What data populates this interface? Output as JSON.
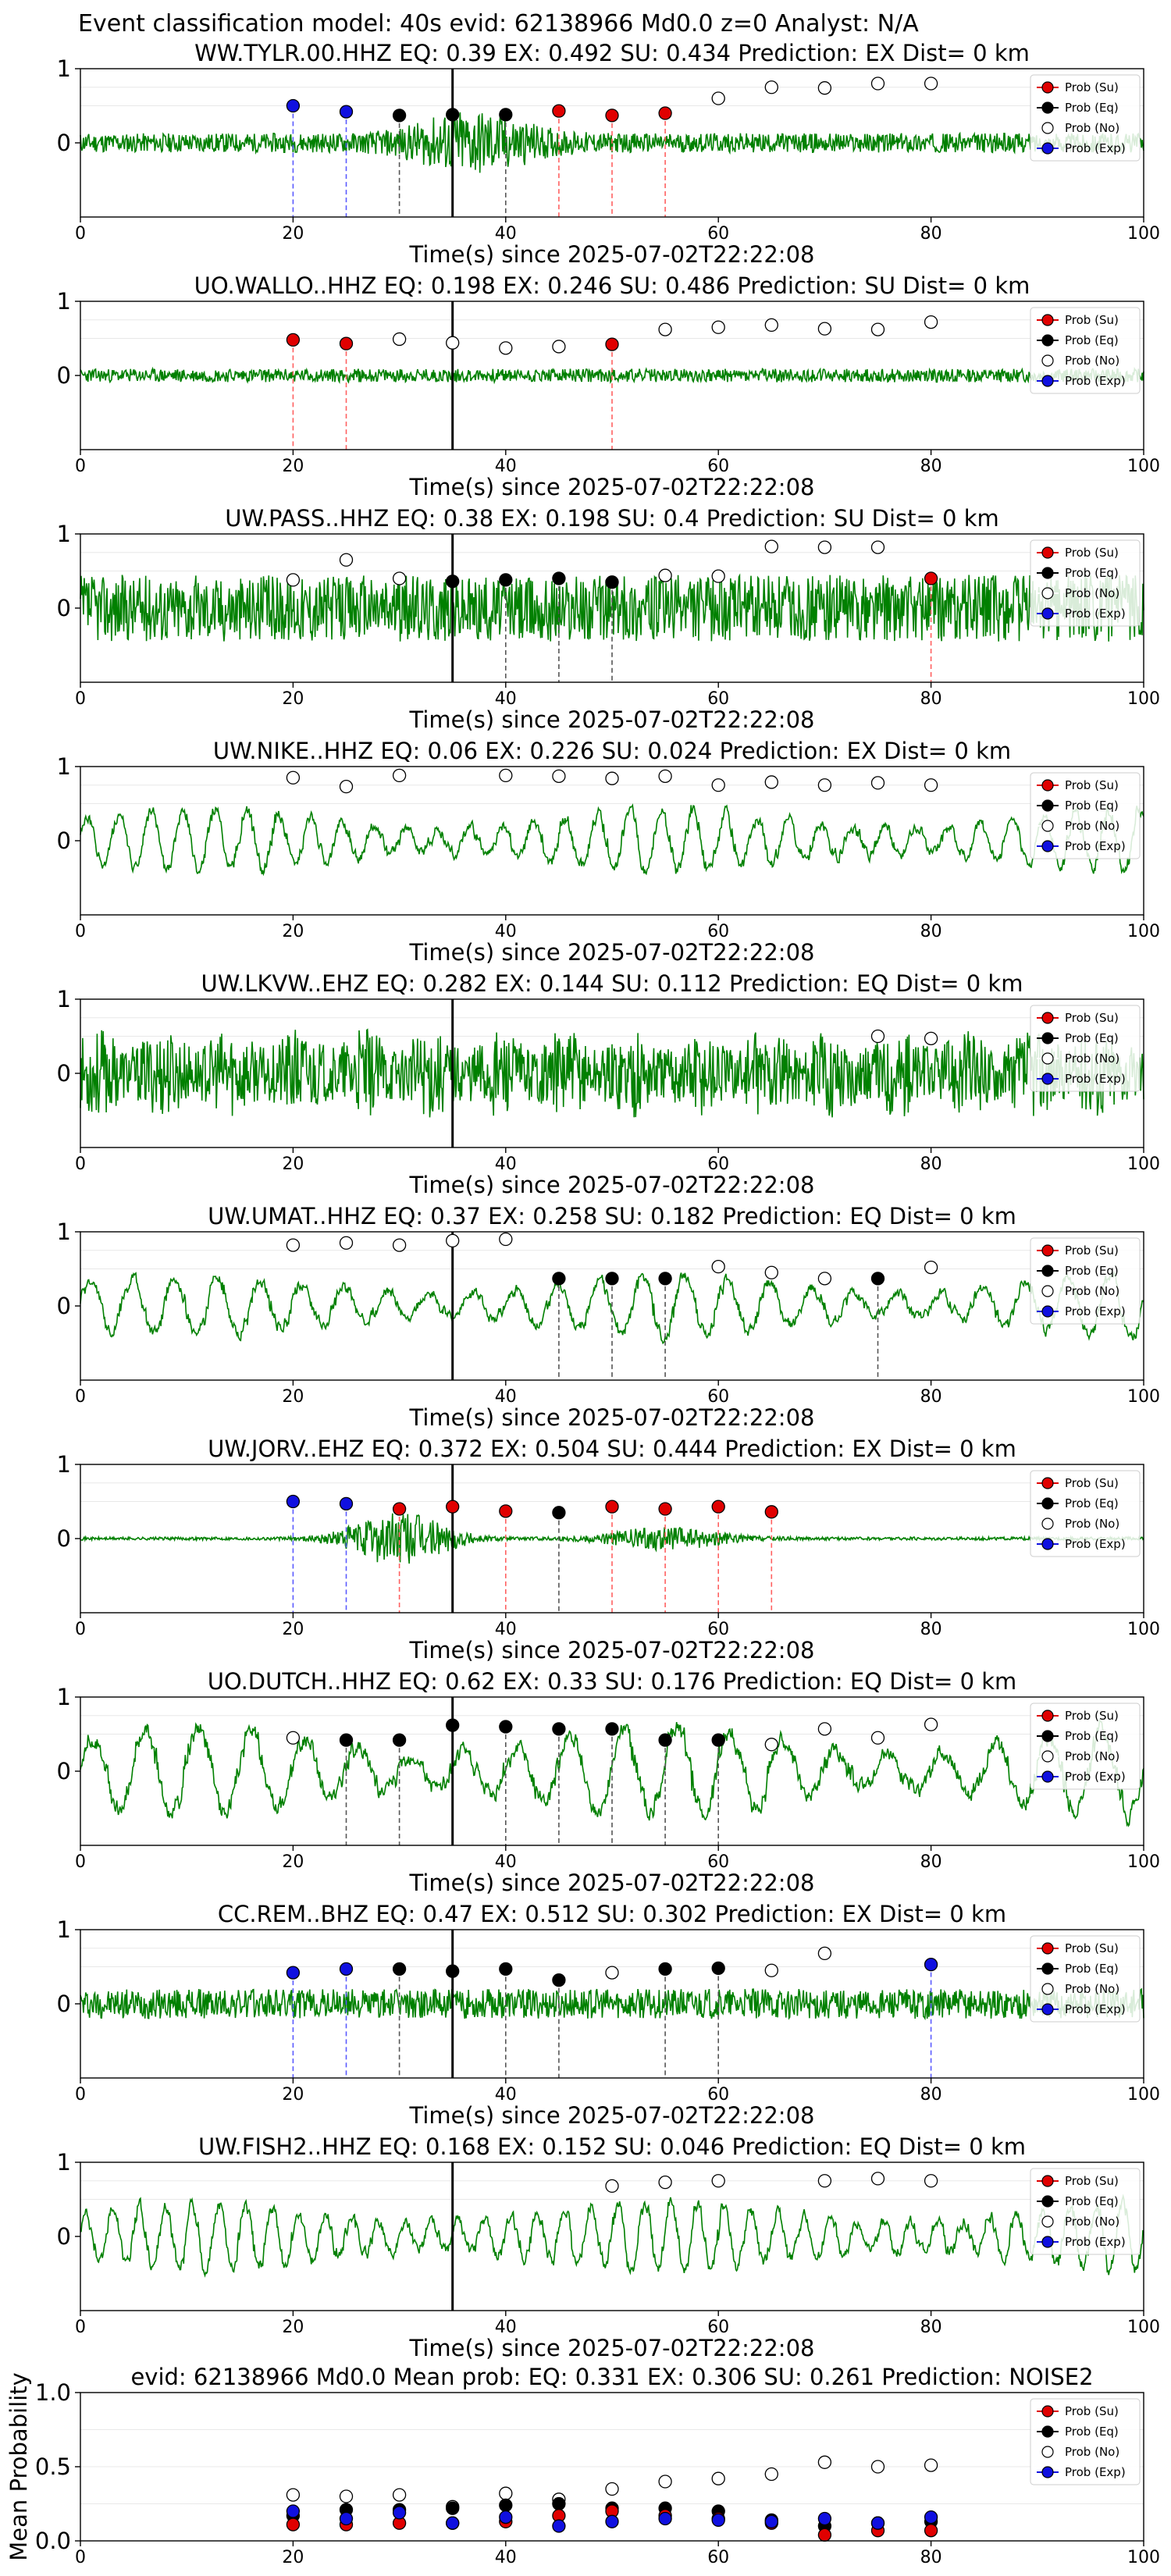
{
  "suptitle": "Event classification model: 40s evid: 62138966 Md0.0 z=0 Analyst: N/A",
  "xlabel": "Time(s) since 2025-07-02T22:22:08",
  "colors": {
    "su": "#e00000",
    "eq": "#000000",
    "no": "#ffffff",
    "exp": "#1010e0",
    "wave": "#008000"
  },
  "legend_labels": [
    "Prob (Su)",
    "Prob (Eq)",
    "Prob (No)",
    "Prob (Exp)"
  ],
  "chart_data": [
    {
      "type": "scatter",
      "station": "WW.TYLR.00.HHZ",
      "title": "WW.TYLR.00.HHZ   EQ: 0.39  EX: 0.492  SU: 0.434   Prediction: EX    Dist= 0 km",
      "xlim": [
        0,
        100
      ],
      "ylim": [
        -1,
        1
      ],
      "yticks": [
        "1",
        "0"
      ],
      "xticks": [
        "0",
        "20",
        "40",
        "60",
        "80",
        "100"
      ],
      "event_line": 35,
      "wave": {
        "amp": 0.13,
        "style": "burst",
        "center": 37,
        "width": 6,
        "boost": 2.5,
        "seed": 11
      },
      "points": [
        {
          "x": 20,
          "y": 0.5,
          "c": "exp"
        },
        {
          "x": 25,
          "y": 0.42,
          "c": "exp"
        },
        {
          "x": 30,
          "y": 0.37,
          "c": "eq"
        },
        {
          "x": 35,
          "y": 0.38,
          "c": "eq"
        },
        {
          "x": 40,
          "y": 0.38,
          "c": "eq"
        },
        {
          "x": 45,
          "y": 0.43,
          "c": "su"
        },
        {
          "x": 50,
          "y": 0.37,
          "c": "su"
        },
        {
          "x": 55,
          "y": 0.4,
          "c": "su"
        },
        {
          "x": 60,
          "y": 0.6,
          "c": "no"
        },
        {
          "x": 65,
          "y": 0.75,
          "c": "no"
        },
        {
          "x": 70,
          "y": 0.74,
          "c": "no"
        },
        {
          "x": 75,
          "y": 0.8,
          "c": "no"
        },
        {
          "x": 80,
          "y": 0.8,
          "c": "no"
        }
      ]
    },
    {
      "type": "scatter",
      "station": "UO.WALLO..HHZ",
      "title": "UO.WALLO..HHZ   EQ: 0.198  EX: 0.246  SU: 0.486   Prediction: SU    Dist= 0 km",
      "xlim": [
        0,
        100
      ],
      "ylim": [
        -1,
        1
      ],
      "yticks": [
        "1",
        "0"
      ],
      "xticks": [
        "0",
        "20",
        "40",
        "60",
        "80",
        "100"
      ],
      "event_line": 35,
      "wave": {
        "amp": 0.09,
        "style": "noise",
        "seed": 23
      },
      "points": [
        {
          "x": 20,
          "y": 0.48,
          "c": "su"
        },
        {
          "x": 25,
          "y": 0.43,
          "c": "su"
        },
        {
          "x": 30,
          "y": 0.49,
          "c": "no"
        },
        {
          "x": 35,
          "y": 0.44,
          "c": "no"
        },
        {
          "x": 40,
          "y": 0.37,
          "c": "no"
        },
        {
          "x": 45,
          "y": 0.39,
          "c": "no"
        },
        {
          "x": 50,
          "y": 0.42,
          "c": "su"
        },
        {
          "x": 55,
          "y": 0.62,
          "c": "no"
        },
        {
          "x": 60,
          "y": 0.65,
          "c": "no"
        },
        {
          "x": 65,
          "y": 0.68,
          "c": "no"
        },
        {
          "x": 70,
          "y": 0.63,
          "c": "no"
        },
        {
          "x": 75,
          "y": 0.62,
          "c": "no"
        },
        {
          "x": 80,
          "y": 0.72,
          "c": "no"
        }
      ]
    },
    {
      "type": "scatter",
      "station": "UW.PASS..HHZ",
      "title": "UW.PASS..HHZ   EQ: 0.38  EX: 0.198  SU: 0.4   Prediction: SU    Dist= 0 km",
      "xlim": [
        0,
        100
      ],
      "ylim": [
        -1,
        1
      ],
      "yticks": [
        "1",
        "0"
      ],
      "xticks": [
        "0",
        "20",
        "40",
        "60",
        "80",
        "100"
      ],
      "event_line": 35,
      "wave": {
        "amp": 0.45,
        "style": "noise",
        "seed": 37
      },
      "points": [
        {
          "x": 20,
          "y": 0.38,
          "c": "no"
        },
        {
          "x": 25,
          "y": 0.65,
          "c": "no"
        },
        {
          "x": 30,
          "y": 0.4,
          "c": "no"
        },
        {
          "x": 35,
          "y": 0.36,
          "c": "eq"
        },
        {
          "x": 40,
          "y": 0.38,
          "c": "eq"
        },
        {
          "x": 45,
          "y": 0.4,
          "c": "eq"
        },
        {
          "x": 50,
          "y": 0.35,
          "c": "eq"
        },
        {
          "x": 55,
          "y": 0.44,
          "c": "no"
        },
        {
          "x": 60,
          "y": 0.43,
          "c": "no"
        },
        {
          "x": 65,
          "y": 0.83,
          "c": "no"
        },
        {
          "x": 70,
          "y": 0.82,
          "c": "no"
        },
        {
          "x": 75,
          "y": 0.82,
          "c": "no"
        },
        {
          "x": 80,
          "y": 0.4,
          "c": "su"
        }
      ]
    },
    {
      "type": "scatter",
      "station": "UW.NIKE..HHZ",
      "title": "UW.NIKE..HHZ   EQ: 0.06  EX: 0.226  SU: 0.024   Prediction: EX    Dist= 0 km",
      "xlim": [
        0,
        100
      ],
      "ylim": [
        -1,
        1
      ],
      "yticks": [
        "1",
        "0"
      ],
      "xticks": [
        "0",
        "20",
        "40",
        "60",
        "80",
        "100"
      ],
      "event_line": null,
      "wave": {
        "amp": 0.42,
        "style": "wave",
        "period": 3,
        "seed": 41
      },
      "points": [
        {
          "x": 20,
          "y": 0.85,
          "c": "no"
        },
        {
          "x": 25,
          "y": 0.73,
          "c": "no"
        },
        {
          "x": 30,
          "y": 0.88,
          "c": "no"
        },
        {
          "x": 40,
          "y": 0.88,
          "c": "no"
        },
        {
          "x": 45,
          "y": 0.87,
          "c": "no"
        },
        {
          "x": 50,
          "y": 0.84,
          "c": "no"
        },
        {
          "x": 55,
          "y": 0.87,
          "c": "no"
        },
        {
          "x": 60,
          "y": 0.75,
          "c": "no"
        },
        {
          "x": 65,
          "y": 0.79,
          "c": "no"
        },
        {
          "x": 70,
          "y": 0.75,
          "c": "no"
        },
        {
          "x": 75,
          "y": 0.78,
          "c": "no"
        },
        {
          "x": 80,
          "y": 0.75,
          "c": "no"
        }
      ]
    },
    {
      "type": "scatter",
      "station": "UW.LKVW..EHZ",
      "title": "UW.LKVW..EHZ   EQ: 0.282  EX: 0.144  SU: 0.112   Prediction: EQ    Dist= 0 km",
      "xlim": [
        0,
        100
      ],
      "ylim": [
        -1,
        1
      ],
      "yticks": [
        "1",
        "0"
      ],
      "xticks": [
        "0",
        "20",
        "40",
        "60",
        "80",
        "100"
      ],
      "event_line": 35,
      "wave": {
        "amp": 0.6,
        "style": "dense",
        "seed": 53
      },
      "points": [
        {
          "x": 75,
          "y": 0.5,
          "c": "no"
        },
        {
          "x": 80,
          "y": 0.47,
          "c": "no"
        }
      ]
    },
    {
      "type": "scatter",
      "station": "UW.UMAT..HHZ",
      "title": "UW.UMAT..HHZ   EQ: 0.37  EX: 0.258  SU: 0.182   Prediction: EQ    Dist= 0 km",
      "xlim": [
        0,
        100
      ],
      "ylim": [
        -1,
        1
      ],
      "yticks": [
        "1",
        "0"
      ],
      "xticks": [
        "0",
        "20",
        "40",
        "60",
        "80",
        "100"
      ],
      "event_line": 35,
      "wave": {
        "amp": 0.4,
        "style": "wave",
        "period": 4,
        "seed": 61
      },
      "points": [
        {
          "x": 20,
          "y": 0.82,
          "c": "no"
        },
        {
          "x": 25,
          "y": 0.85,
          "c": "no"
        },
        {
          "x": 30,
          "y": 0.82,
          "c": "no"
        },
        {
          "x": 35,
          "y": 0.88,
          "c": "no"
        },
        {
          "x": 40,
          "y": 0.9,
          "c": "no"
        },
        {
          "x": 45,
          "y": 0.37,
          "c": "eq"
        },
        {
          "x": 50,
          "y": 0.37,
          "c": "eq"
        },
        {
          "x": 55,
          "y": 0.37,
          "c": "eq"
        },
        {
          "x": 60,
          "y": 0.53,
          "c": "no"
        },
        {
          "x": 65,
          "y": 0.45,
          "c": "no"
        },
        {
          "x": 70,
          "y": 0.37,
          "c": "no"
        },
        {
          "x": 75,
          "y": 0.37,
          "c": "eq"
        },
        {
          "x": 80,
          "y": 0.52,
          "c": "no"
        }
      ]
    },
    {
      "type": "scatter",
      "station": "UW.JORV..EHZ",
      "title": "UW.JORV..EHZ   EQ: 0.372  EX: 0.504  SU: 0.444   Prediction: EX    Dist= 0 km",
      "xlim": [
        0,
        100
      ],
      "ylim": [
        -1,
        1
      ],
      "yticks": [
        "1",
        "0"
      ],
      "xticks": [
        "0",
        "20",
        "40",
        "60",
        "80",
        "100"
      ],
      "event_line": 35,
      "wave": {
        "amp": 0.02,
        "style": "twoburst",
        "seed": 71
      },
      "points": [
        {
          "x": 20,
          "y": 0.5,
          "c": "exp"
        },
        {
          "x": 25,
          "y": 0.47,
          "c": "exp"
        },
        {
          "x": 30,
          "y": 0.4,
          "c": "su"
        },
        {
          "x": 35,
          "y": 0.43,
          "c": "su"
        },
        {
          "x": 40,
          "y": 0.37,
          "c": "su"
        },
        {
          "x": 45,
          "y": 0.35,
          "c": "eq"
        },
        {
          "x": 50,
          "y": 0.43,
          "c": "su"
        },
        {
          "x": 55,
          "y": 0.4,
          "c": "su"
        },
        {
          "x": 60,
          "y": 0.43,
          "c": "su"
        },
        {
          "x": 65,
          "y": 0.36,
          "c": "su"
        }
      ]
    },
    {
      "type": "scatter",
      "station": "UO.DUTCH..HHZ",
      "title": "UO.DUTCH..HHZ   EQ: 0.62  EX: 0.33  SU: 0.176   Prediction: EQ    Dist= 0 km",
      "xlim": [
        0,
        100
      ],
      "ylim": [
        -1,
        1
      ],
      "yticks": [
        "1",
        "0"
      ],
      "xticks": [
        "0",
        "20",
        "40",
        "60",
        "80",
        "100"
      ],
      "event_line": 35,
      "wave": {
        "amp": 0.6,
        "style": "wave",
        "period": 5,
        "seed": 83
      },
      "points": [
        {
          "x": 20,
          "y": 0.45,
          "c": "no"
        },
        {
          "x": 25,
          "y": 0.42,
          "c": "eq"
        },
        {
          "x": 30,
          "y": 0.42,
          "c": "eq"
        },
        {
          "x": 35,
          "y": 0.62,
          "c": "eq"
        },
        {
          "x": 40,
          "y": 0.6,
          "c": "eq"
        },
        {
          "x": 45,
          "y": 0.57,
          "c": "eq"
        },
        {
          "x": 50,
          "y": 0.57,
          "c": "eq"
        },
        {
          "x": 55,
          "y": 0.42,
          "c": "eq"
        },
        {
          "x": 60,
          "y": 0.42,
          "c": "eq"
        },
        {
          "x": 65,
          "y": 0.36,
          "c": "no"
        },
        {
          "x": 70,
          "y": 0.57,
          "c": "no"
        },
        {
          "x": 75,
          "y": 0.45,
          "c": "no"
        },
        {
          "x": 80,
          "y": 0.63,
          "c": "no"
        }
      ]
    },
    {
      "type": "scatter",
      "station": "CC.REM..BHZ",
      "title": "CC.REM..BHZ   EQ: 0.47  EX: 0.512  SU: 0.302   Prediction: EX    Dist= 0 km",
      "xlim": [
        0,
        100
      ],
      "ylim": [
        -1,
        1
      ],
      "yticks": [
        "1",
        "0"
      ],
      "xticks": [
        "0",
        "20",
        "40",
        "60",
        "80",
        "100"
      ],
      "event_line": 35,
      "wave": {
        "amp": 0.2,
        "style": "noise",
        "seed": 97
      },
      "points": [
        {
          "x": 20,
          "y": 0.42,
          "c": "exp"
        },
        {
          "x": 25,
          "y": 0.47,
          "c": "exp"
        },
        {
          "x": 30,
          "y": 0.47,
          "c": "eq"
        },
        {
          "x": 35,
          "y": 0.44,
          "c": "eq"
        },
        {
          "x": 40,
          "y": 0.47,
          "c": "eq"
        },
        {
          "x": 45,
          "y": 0.32,
          "c": "eq"
        },
        {
          "x": 50,
          "y": 0.42,
          "c": "no"
        },
        {
          "x": 55,
          "y": 0.47,
          "c": "eq"
        },
        {
          "x": 60,
          "y": 0.48,
          "c": "eq"
        },
        {
          "x": 65,
          "y": 0.45,
          "c": "no"
        },
        {
          "x": 70,
          "y": 0.68,
          "c": "no"
        },
        {
          "x": 80,
          "y": 0.53,
          "c": "exp"
        }
      ]
    },
    {
      "type": "scatter",
      "station": "UW.FISH2..HHZ",
      "title": "UW.FISH2..HHZ   EQ: 0.168  EX: 0.152  SU: 0.046   Prediction: EQ    Dist= 0 km",
      "xlim": [
        0,
        100
      ],
      "ylim": [
        -1,
        1
      ],
      "yticks": [
        "1",
        "0"
      ],
      "xticks": [
        "0",
        "20",
        "40",
        "60",
        "80",
        "100"
      ],
      "event_line": 35,
      "wave": {
        "amp": 0.45,
        "style": "wave",
        "period": 2.5,
        "seed": 101
      },
      "points": [
        {
          "x": 50,
          "y": 0.68,
          "c": "no"
        },
        {
          "x": 55,
          "y": 0.73,
          "c": "no"
        },
        {
          "x": 60,
          "y": 0.75,
          "c": "no"
        },
        {
          "x": 70,
          "y": 0.75,
          "c": "no"
        },
        {
          "x": 75,
          "y": 0.78,
          "c": "no"
        },
        {
          "x": 80,
          "y": 0.75,
          "c": "no"
        }
      ]
    },
    {
      "type": "scatter",
      "station": "mean",
      "title": "evid: 62138966  Md0.0   Mean prob:   EQ: 0.331  EX: 0.306  SU: 0.261   Prediction: NOISE2",
      "ylabel": "Mean Probability",
      "xlim": [
        0,
        100
      ],
      "ylim": [
        0,
        1
      ],
      "yticks": [
        "1.0",
        "0.5",
        "0.0"
      ],
      "xticks": [
        "0",
        "20",
        "40",
        "60",
        "80",
        "100"
      ],
      "event_line": null,
      "wave": null,
      "points": [
        {
          "x": 20,
          "y": 0.31,
          "c": "no"
        },
        {
          "x": 25,
          "y": 0.3,
          "c": "no"
        },
        {
          "x": 30,
          "y": 0.31,
          "c": "no"
        },
        {
          "x": 35,
          "y": 0.23,
          "c": "no"
        },
        {
          "x": 40,
          "y": 0.32,
          "c": "no"
        },
        {
          "x": 45,
          "y": 0.28,
          "c": "no"
        },
        {
          "x": 50,
          "y": 0.35,
          "c": "no"
        },
        {
          "x": 55,
          "y": 0.4,
          "c": "no"
        },
        {
          "x": 60,
          "y": 0.42,
          "c": "no"
        },
        {
          "x": 65,
          "y": 0.45,
          "c": "no"
        },
        {
          "x": 70,
          "y": 0.53,
          "c": "no"
        },
        {
          "x": 75,
          "y": 0.5,
          "c": "no"
        },
        {
          "x": 80,
          "y": 0.51,
          "c": "no"
        },
        {
          "x": 20,
          "y": 0.17,
          "c": "eq"
        },
        {
          "x": 25,
          "y": 0.21,
          "c": "eq"
        },
        {
          "x": 30,
          "y": 0.21,
          "c": "eq"
        },
        {
          "x": 35,
          "y": 0.22,
          "c": "eq"
        },
        {
          "x": 40,
          "y": 0.24,
          "c": "eq"
        },
        {
          "x": 45,
          "y": 0.25,
          "c": "eq"
        },
        {
          "x": 50,
          "y": 0.22,
          "c": "eq"
        },
        {
          "x": 55,
          "y": 0.22,
          "c": "eq"
        },
        {
          "x": 60,
          "y": 0.2,
          "c": "eq"
        },
        {
          "x": 65,
          "y": 0.14,
          "c": "eq"
        },
        {
          "x": 70,
          "y": 0.1,
          "c": "eq"
        },
        {
          "x": 75,
          "y": 0.12,
          "c": "eq"
        },
        {
          "x": 80,
          "y": 0.13,
          "c": "eq"
        },
        {
          "x": 20,
          "y": 0.11,
          "c": "su"
        },
        {
          "x": 25,
          "y": 0.11,
          "c": "su"
        },
        {
          "x": 30,
          "y": 0.12,
          "c": "su"
        },
        {
          "x": 35,
          "y": 0.12,
          "c": "su"
        },
        {
          "x": 40,
          "y": 0.13,
          "c": "su"
        },
        {
          "x": 45,
          "y": 0.17,
          "c": "su"
        },
        {
          "x": 50,
          "y": 0.2,
          "c": "su"
        },
        {
          "x": 55,
          "y": 0.17,
          "c": "su"
        },
        {
          "x": 60,
          "y": 0.15,
          "c": "su"
        },
        {
          "x": 65,
          "y": 0.12,
          "c": "su"
        },
        {
          "x": 70,
          "y": 0.04,
          "c": "su"
        },
        {
          "x": 75,
          "y": 0.07,
          "c": "su"
        },
        {
          "x": 80,
          "y": 0.07,
          "c": "su"
        },
        {
          "x": 20,
          "y": 0.2,
          "c": "exp"
        },
        {
          "x": 25,
          "y": 0.15,
          "c": "exp"
        },
        {
          "x": 30,
          "y": 0.19,
          "c": "exp"
        },
        {
          "x": 35,
          "y": 0.12,
          "c": "exp"
        },
        {
          "x": 40,
          "y": 0.16,
          "c": "exp"
        },
        {
          "x": 45,
          "y": 0.1,
          "c": "exp"
        },
        {
          "x": 50,
          "y": 0.13,
          "c": "exp"
        },
        {
          "x": 55,
          "y": 0.15,
          "c": "exp"
        },
        {
          "x": 60,
          "y": 0.14,
          "c": "exp"
        },
        {
          "x": 65,
          "y": 0.13,
          "c": "exp"
        },
        {
          "x": 70,
          "y": 0.15,
          "c": "exp"
        },
        {
          "x": 75,
          "y": 0.12,
          "c": "exp"
        },
        {
          "x": 80,
          "y": 0.16,
          "c": "exp"
        }
      ]
    }
  ]
}
